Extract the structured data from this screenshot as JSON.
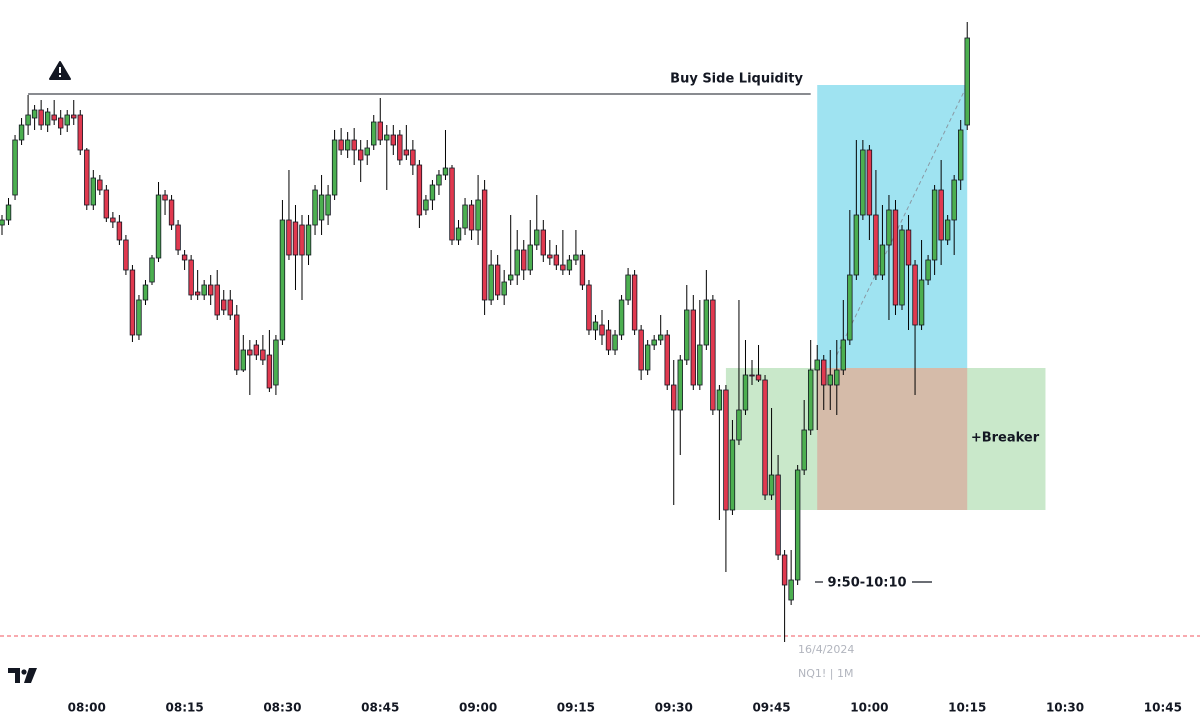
{
  "chart_data": {
    "type": "candlestick",
    "x": [
      "07:47",
      "07:48",
      "07:49",
      "07:50",
      "07:51",
      "07:52",
      "07:53",
      "07:54",
      "07:55",
      "07:56",
      "07:57",
      "07:58",
      "07:59",
      "08:00",
      "08:01",
      "08:02",
      "08:03",
      "08:04",
      "08:05",
      "08:06",
      "08:07",
      "08:08",
      "08:09",
      "08:10",
      "08:11",
      "08:12",
      "08:13",
      "08:14",
      "08:15",
      "08:16",
      "08:17",
      "08:18",
      "08:19",
      "08:20",
      "08:21",
      "08:22",
      "08:23",
      "08:24",
      "08:25",
      "08:26",
      "08:27",
      "08:28",
      "08:29",
      "08:30",
      "08:31",
      "08:32",
      "08:33",
      "08:34",
      "08:35",
      "08:36",
      "08:37",
      "08:38",
      "08:39",
      "08:40",
      "08:41",
      "08:42",
      "08:43",
      "08:44",
      "08:45",
      "08:46",
      "08:47",
      "08:48",
      "08:49",
      "08:50",
      "08:51",
      "08:52",
      "08:53",
      "08:54",
      "08:55",
      "08:56",
      "08:57",
      "08:58",
      "08:59",
      "09:00",
      "09:01",
      "09:02",
      "09:03",
      "09:04",
      "09:05",
      "09:06",
      "09:07",
      "09:08",
      "09:09",
      "09:10",
      "09:11",
      "09:12",
      "09:13",
      "09:14",
      "09:15",
      "09:16",
      "09:17",
      "09:18",
      "09:19",
      "09:20",
      "09:21",
      "09:22",
      "09:23",
      "09:24",
      "09:25",
      "09:26",
      "09:27",
      "09:28",
      "09:29",
      "09:30",
      "09:31",
      "09:32",
      "09:33",
      "09:34",
      "09:35",
      "09:36",
      "09:37",
      "09:38",
      "09:39",
      "09:40",
      "09:41",
      "09:42",
      "09:43",
      "09:44",
      "09:45",
      "09:46",
      "09:47",
      "09:48",
      "09:49",
      "09:50",
      "09:51",
      "09:52",
      "09:53",
      "09:54",
      "09:55",
      "09:56",
      "09:57",
      "09:58",
      "09:59",
      "10:00",
      "10:01",
      "10:02",
      "10:03",
      "10:04",
      "10:05",
      "10:06",
      "10:07",
      "10:08",
      "10:09",
      "10:10",
      "10:11",
      "10:12",
      "10:13",
      "10:14",
      "10:15"
    ],
    "ohlc": [
      [
        225,
        215,
        235,
        220
      ],
      [
        220,
        198,
        225,
        205
      ],
      [
        195,
        135,
        200,
        140
      ],
      [
        140,
        118,
        145,
        125
      ],
      [
        125,
        95,
        135,
        115
      ],
      [
        118,
        105,
        130,
        110
      ],
      [
        110,
        100,
        130,
        125
      ],
      [
        125,
        108,
        132,
        112
      ],
      [
        115,
        100,
        125,
        120
      ],
      [
        118,
        110,
        135,
        128
      ],
      [
        125,
        110,
        132,
        115
      ],
      [
        115,
        100,
        125,
        118
      ],
      [
        115,
        110,
        155,
        150
      ],
      [
        150,
        148,
        210,
        205
      ],
      [
        205,
        170,
        210,
        178
      ],
      [
        180,
        175,
        195,
        190
      ],
      [
        190,
        185,
        222,
        218
      ],
      [
        218,
        212,
        228,
        222
      ],
      [
        222,
        215,
        245,
        240
      ],
      [
        240,
        235,
        275,
        270
      ],
      [
        270,
        265,
        342,
        335
      ],
      [
        335,
        295,
        340,
        300
      ],
      [
        300,
        280,
        305,
        285
      ],
      [
        282,
        255,
        285,
        258
      ],
      [
        258,
        182,
        262,
        195
      ],
      [
        195,
        190,
        215,
        200
      ],
      [
        200,
        195,
        230,
        225
      ],
      [
        225,
        220,
        255,
        250
      ],
      [
        255,
        250,
        270,
        260
      ],
      [
        260,
        255,
        300,
        295
      ],
      [
        292,
        270,
        300,
        295
      ],
      [
        295,
        280,
        300,
        285
      ],
      [
        285,
        275,
        305,
        295
      ],
      [
        285,
        270,
        320,
        315
      ],
      [
        300,
        290,
        315,
        310
      ],
      [
        300,
        290,
        320,
        315
      ],
      [
        315,
        305,
        375,
        370
      ],
      [
        370,
        335,
        372,
        350
      ],
      [
        350,
        340,
        395,
        355
      ],
      [
        345,
        340,
        360,
        355
      ],
      [
        350,
        335,
        365,
        360
      ],
      [
        355,
        330,
        392,
        388
      ],
      [
        385,
        335,
        395,
        340
      ],
      [
        340,
        200,
        345,
        220
      ],
      [
        220,
        170,
        260,
        255
      ],
      [
        222,
        205,
        290,
        255
      ],
      [
        225,
        215,
        300,
        255
      ],
      [
        255,
        215,
        265,
        225
      ],
      [
        225,
        185,
        235,
        190
      ],
      [
        220,
        175,
        235,
        195
      ],
      [
        215,
        185,
        225,
        195
      ],
      [
        195,
        130,
        200,
        140
      ],
      [
        140,
        128,
        155,
        150
      ],
      [
        150,
        132,
        158,
        140
      ],
      [
        140,
        128,
        165,
        150
      ],
      [
        150,
        140,
        182,
        160
      ],
      [
        155,
        140,
        165,
        148
      ],
      [
        145,
        115,
        150,
        122
      ],
      [
        122,
        98,
        145,
        140
      ],
      [
        140,
        125,
        190,
        135
      ],
      [
        135,
        125,
        155,
        145
      ],
      [
        135,
        130,
        165,
        160
      ],
      [
        150,
        125,
        160,
        155
      ],
      [
        150,
        140,
        175,
        165
      ],
      [
        165,
        160,
        228,
        215
      ],
      [
        210,
        195,
        215,
        200
      ],
      [
        200,
        180,
        210,
        185
      ],
      [
        185,
        170,
        195,
        175
      ],
      [
        175,
        130,
        180,
        168
      ],
      [
        168,
        165,
        245,
        240
      ],
      [
        240,
        220,
        245,
        228
      ],
      [
        228,
        198,
        235,
        205
      ],
      [
        205,
        200,
        240,
        230
      ],
      [
        230,
        175,
        245,
        200
      ],
      [
        190,
        180,
        315,
        300
      ],
      [
        300,
        250,
        305,
        265
      ],
      [
        265,
        255,
        300,
        295
      ],
      [
        295,
        270,
        305,
        282
      ],
      [
        280,
        215,
        285,
        275
      ],
      [
        275,
        230,
        285,
        250
      ],
      [
        250,
        240,
        280,
        270
      ],
      [
        270,
        220,
        275,
        245
      ],
      [
        245,
        195,
        250,
        230
      ],
      [
        230,
        220,
        262,
        255
      ],
      [
        255,
        240,
        265,
        258
      ],
      [
        255,
        245,
        270,
        265
      ],
      [
        265,
        230,
        275,
        270
      ],
      [
        270,
        255,
        275,
        260
      ],
      [
        260,
        230,
        265,
        255
      ],
      [
        255,
        250,
        290,
        285
      ],
      [
        285,
        280,
        335,
        330
      ],
      [
        330,
        315,
        340,
        322
      ],
      [
        325,
        310,
        345,
        335
      ],
      [
        330,
        320,
        355,
        350
      ],
      [
        350,
        330,
        355,
        335
      ],
      [
        335,
        295,
        340,
        300
      ],
      [
        300,
        268,
        305,
        275
      ],
      [
        275,
        270,
        335,
        330
      ],
      [
        330,
        325,
        380,
        370
      ],
      [
        370,
        340,
        375,
        345
      ],
      [
        345,
        335,
        350,
        340
      ],
      [
        340,
        315,
        345,
        335
      ],
      [
        335,
        330,
        390,
        385
      ],
      [
        385,
        360,
        505,
        410
      ],
      [
        410,
        355,
        455,
        360
      ],
      [
        360,
        285,
        365,
        310
      ],
      [
        310,
        295,
        390,
        385
      ],
      [
        385,
        300,
        390,
        345
      ],
      [
        345,
        270,
        350,
        300
      ],
      [
        300,
        295,
        415,
        410
      ],
      [
        410,
        385,
        520,
        390
      ],
      [
        390,
        385,
        572,
        510
      ],
      [
        510,
        420,
        515,
        440
      ],
      [
        440,
        300,
        445,
        410
      ],
      [
        410,
        340,
        415,
        375
      ],
      [
        375,
        360,
        385,
        375
      ],
      [
        375,
        345,
        382,
        380
      ],
      [
        380,
        375,
        500,
        495
      ],
      [
        495,
        408,
        500,
        475
      ],
      [
        475,
        455,
        560,
        555
      ],
      [
        555,
        550,
        642,
        585
      ],
      [
        600,
        550,
        605,
        580
      ],
      [
        580,
        465,
        585,
        470
      ],
      [
        470,
        400,
        475,
        430
      ],
      [
        430,
        340,
        435,
        370
      ],
      [
        370,
        345,
        430,
        360
      ],
      [
        360,
        355,
        410,
        385
      ],
      [
        385,
        350,
        410,
        375
      ],
      [
        385,
        340,
        415,
        370
      ],
      [
        370,
        300,
        375,
        340
      ],
      [
        340,
        210,
        345,
        275
      ],
      [
        275,
        140,
        280,
        215
      ],
      [
        215,
        140,
        220,
        150
      ],
      [
        150,
        145,
        240,
        215
      ],
      [
        215,
        170,
        280,
        275
      ],
      [
        275,
        205,
        280,
        245
      ],
      [
        245,
        195,
        320,
        210
      ],
      [
        210,
        200,
        315,
        305
      ],
      [
        305,
        225,
        310,
        230
      ],
      [
        230,
        215,
        330,
        265
      ],
      [
        265,
        260,
        395,
        325
      ],
      [
        325,
        240,
        330,
        280
      ],
      [
        280,
        255,
        285,
        260
      ],
      [
        260,
        185,
        275,
        190
      ],
      [
        190,
        160,
        265,
        240
      ],
      [
        240,
        215,
        245,
        220
      ],
      [
        220,
        175,
        255,
        180
      ],
      [
        180,
        120,
        190,
        130
      ],
      [
        125,
        22,
        130,
        38
      ]
    ],
    "up_color": "#4caf50",
    "down_color": "#e0394f",
    "wick_color": "#000000",
    "xlim": [
      "07:47",
      "10:51"
    ],
    "ylim": [
      718,
      0
    ],
    "xticks": [
      "08:00",
      "08:15",
      "08:30",
      "08:45",
      "09:00",
      "09:15",
      "09:30",
      "09:45",
      "10:00",
      "10:15",
      "10:30",
      "10:45"
    ],
    "zones": [
      {
        "x": [
          "09:52",
          "10:15"
        ],
        "y": [
          85,
          368
        ],
        "color": "#9fe3f1"
      },
      {
        "x": [
          "09:38",
          "10:27"
        ],
        "y": [
          368,
          510
        ],
        "color": "#c9e8ca"
      },
      {
        "x": [
          "09:52",
          "10:15"
        ],
        "y": [
          368,
          510
        ],
        "color": "#d5bba9"
      }
    ],
    "level": {
      "label": "Buy Side Liquidity",
      "value": 94,
      "x": [
        "07:51",
        "09:51"
      ]
    },
    "trend_line": {
      "x": [
        "09:55",
        "10:15"
      ],
      "y": [
        355,
        85
      ]
    },
    "red_level": {
      "value": 636,
      "color": "#f0565f"
    },
    "breaker_label": "+Breaker",
    "session_label": "9:50-10:10",
    "date": "16/4/2024",
    "symbol": "NQ1! | 1M"
  }
}
